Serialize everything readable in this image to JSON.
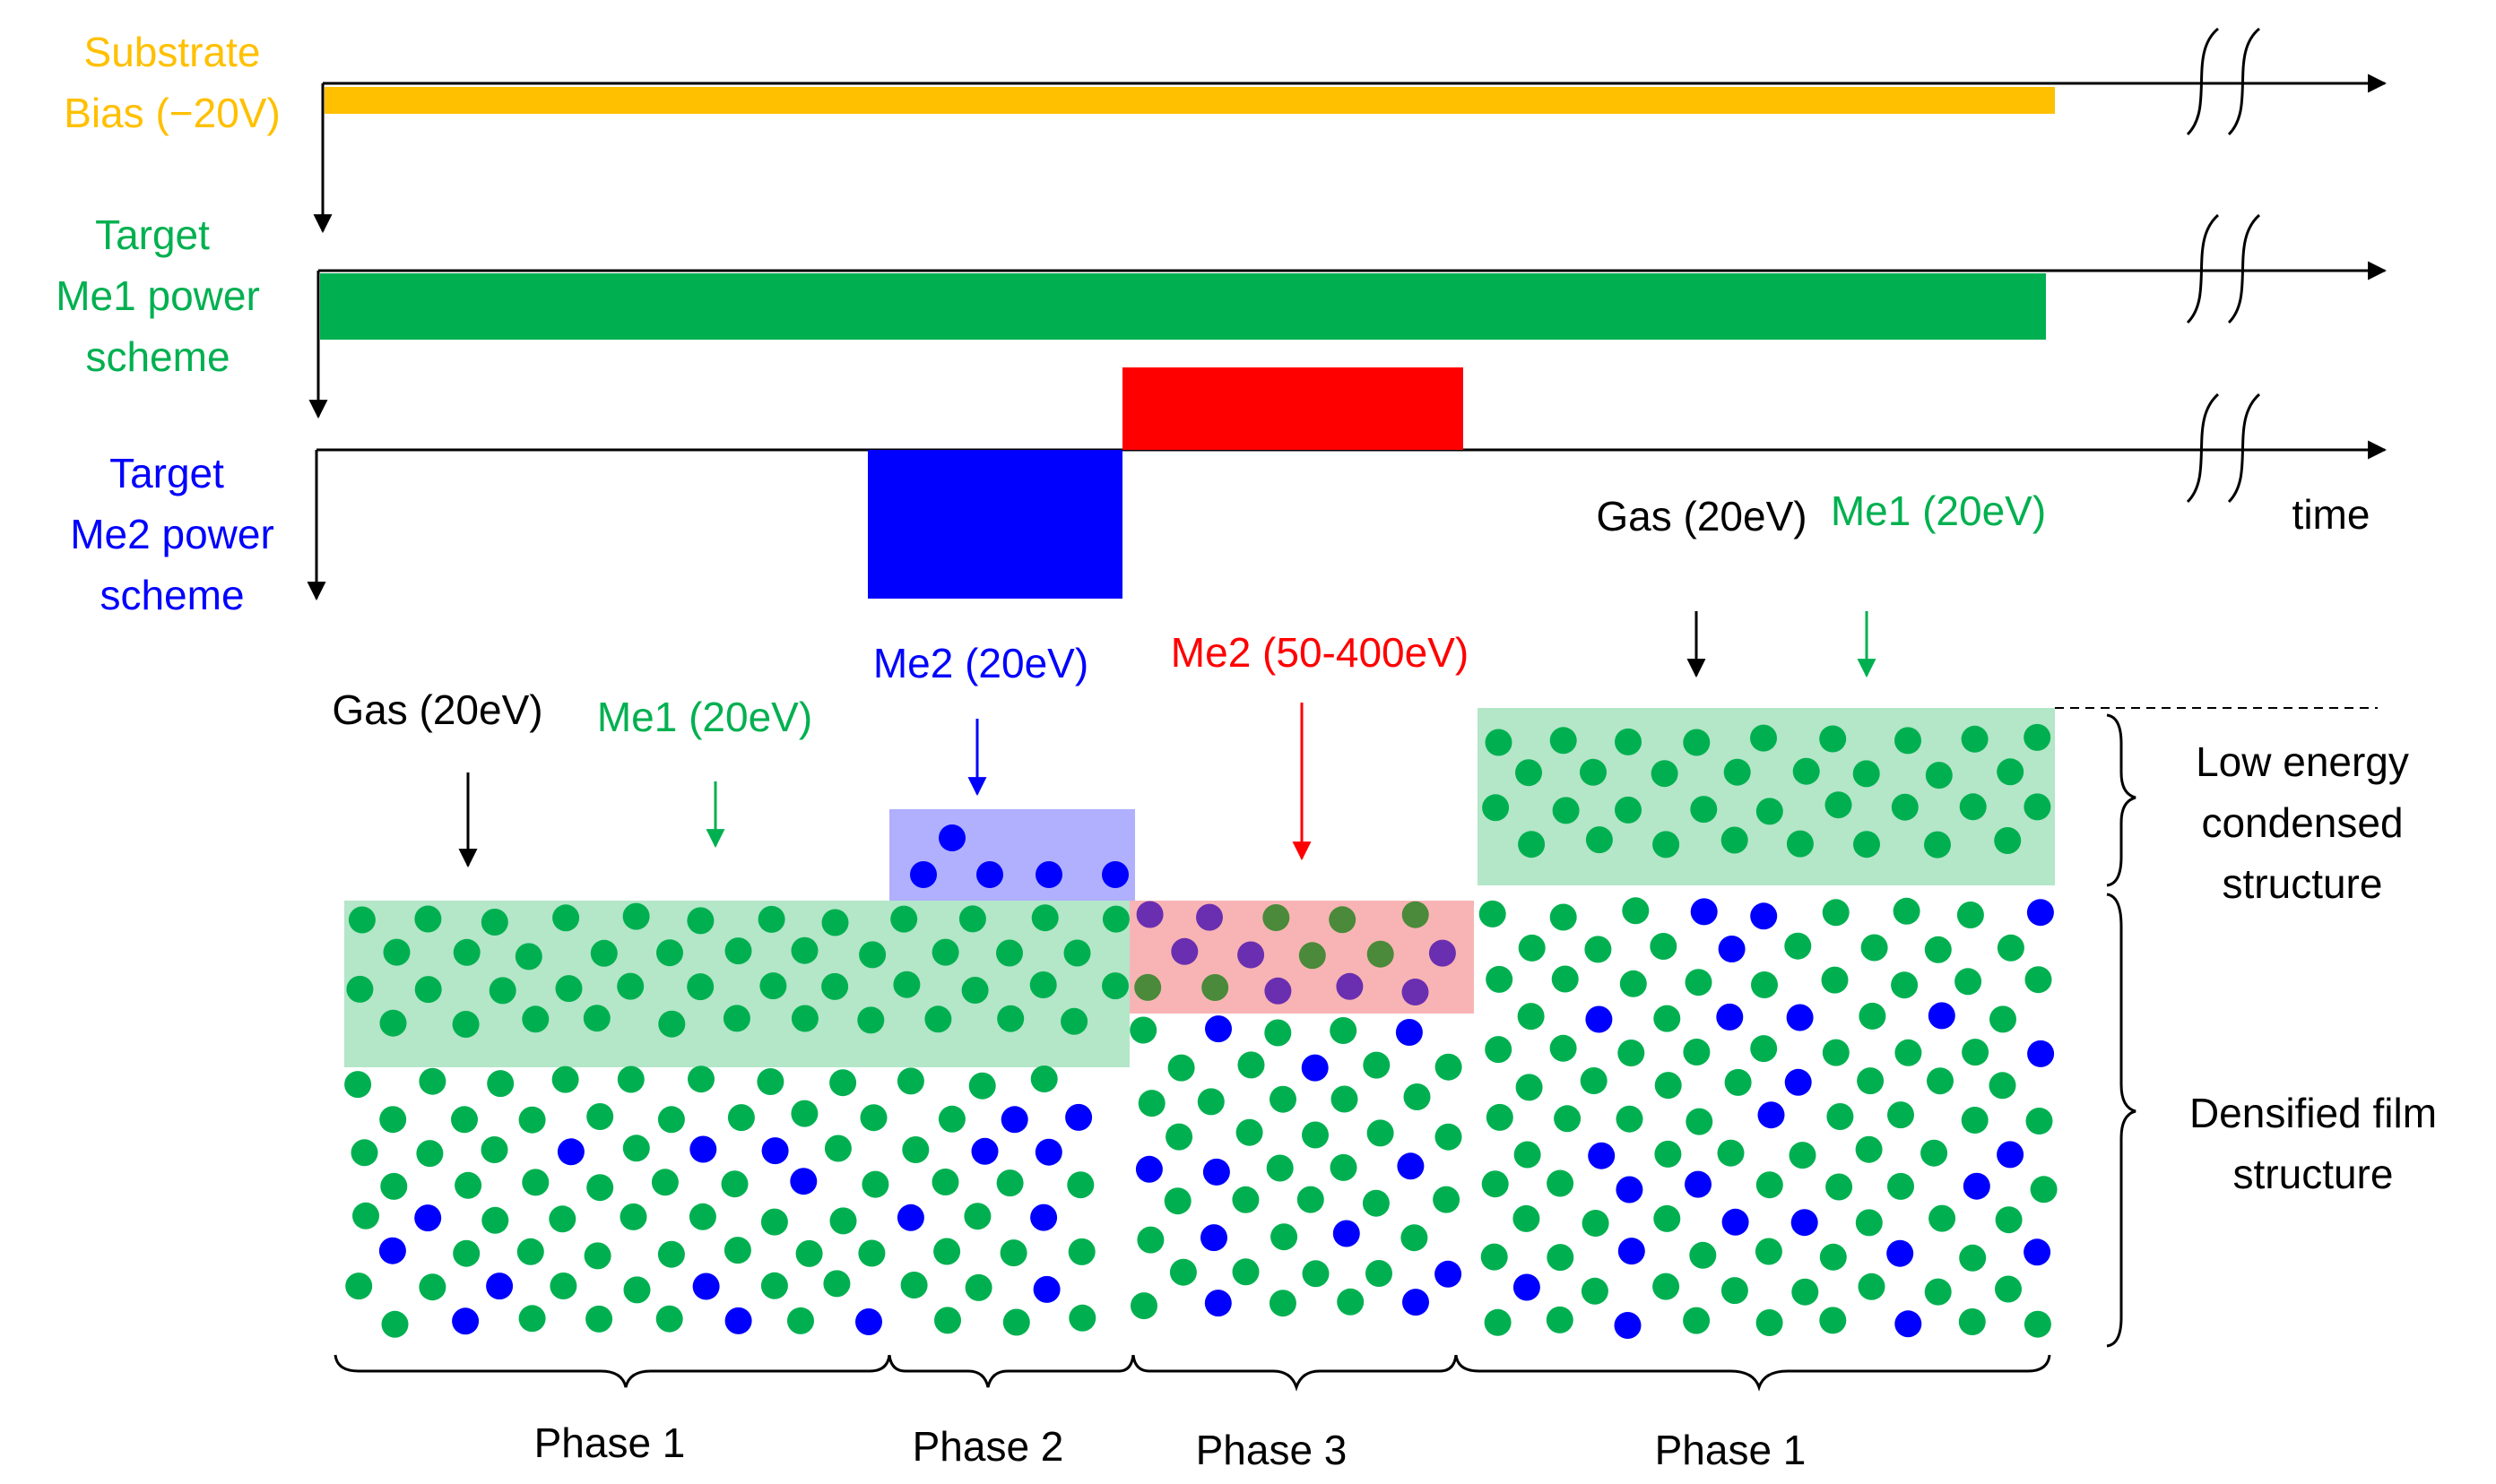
{
  "colors": {
    "bias": "#FFC000",
    "me1": "#00B050",
    "me2": "#0000FF",
    "me2_high": "#FF0000",
    "gas": "#000000",
    "green_fill": "#B4E6C8",
    "blue_fill": "#B0B0FF",
    "red_fill": "#F8B4B4"
  },
  "timeline": {
    "bias": {
      "label_line1": "Substrate",
      "label_line2": "Bias (−20V)"
    },
    "me1": {
      "label_line1": "Target",
      "label_line2": "Me1 power",
      "label_line3": "scheme"
    },
    "me2": {
      "label_line1": "Target",
      "label_line2": "Me2 power",
      "label_line3": "scheme"
    },
    "time_label": "time"
  },
  "flux_labels": {
    "phase1_left_gas": "Gas (20eV)",
    "phase1_left_me1": "Me1 (20eV)",
    "phase2_me2": "Me2 (20eV)",
    "phase3_me2": "Me2 (50-400eV)",
    "phase1_right_gas": "Gas (20eV)",
    "phase1_right_me1": "Me1 (20eV)"
  },
  "structure_labels": {
    "low_energy_line1": "Low energy",
    "low_energy_line2": "condensed",
    "low_energy_line3": "structure",
    "densified_line1": "Densified film",
    "densified_line2": "structure"
  },
  "phases": {
    "phase1_left": "Phase 1",
    "phase2": "Phase 2",
    "phase3": "Phase 3",
    "phase1_right": "Phase 1"
  }
}
